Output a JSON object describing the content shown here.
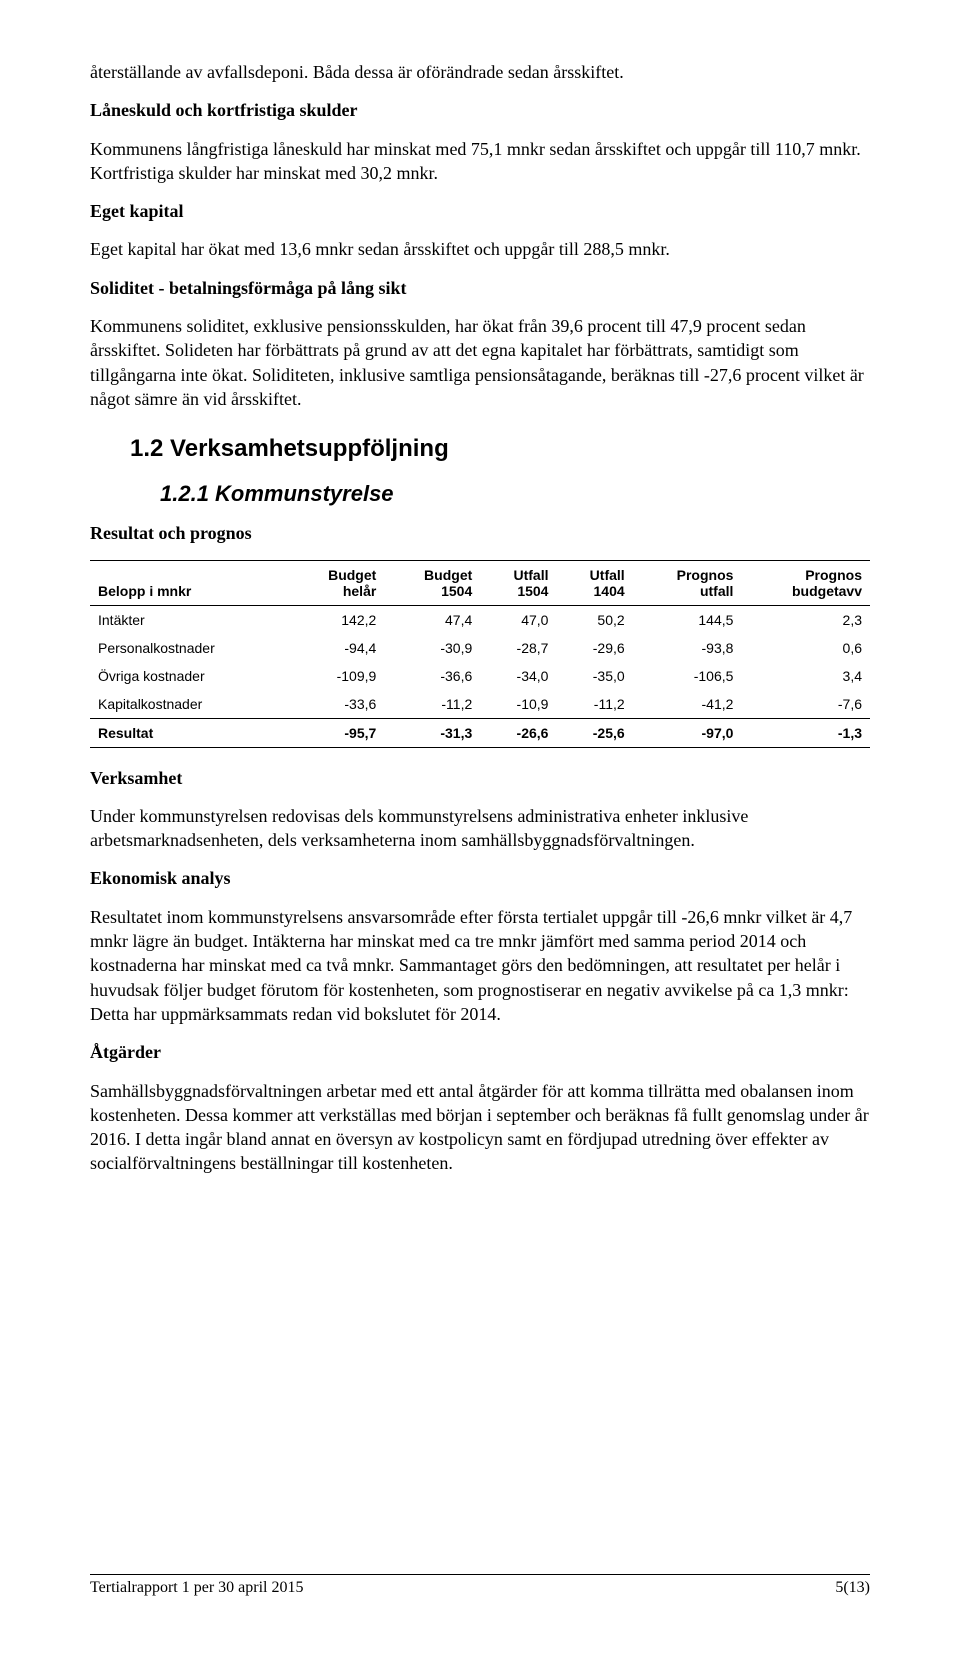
{
  "para1": "återställande av avfallsdeponi. Båda dessa är oförändrade sedan årsskiftet.",
  "h_lane": "Låneskuld och kortfristiga skulder",
  "para2": "Kommunens långfristiga låneskuld har minskat med 75,1 mnkr sedan årsskiftet och uppgår till 110,7 mnkr. Kortfristiga skulder har minskat med 30,2 mnkr.",
  "h_eget": "Eget kapital",
  "para3": "Eget kapital har ökat med 13,6 mnkr sedan årsskiftet och uppgår till 288,5 mnkr.",
  "h_sol": "Soliditet - betalningsförmåga på lång sikt",
  "para4": "Kommunens soliditet, exklusive pensionsskulden, har ökat från 39,6 procent till 47,9 procent sedan årsskiftet. Solideten har förbättrats på grund av att det egna kapitalet har förbättrats, samtidigt som tillgångarna inte ökat. Soliditeten, inklusive samtliga pensionsåtagande, beräknas till -27,6 procent vilket är något sämre än vid årsskiftet.",
  "sec12": "1.2 Verksamhetsuppföljning",
  "sec121": "1.2.1  Kommunstyrelse",
  "h_res": "Resultat och prognos",
  "table": {
    "columns": [
      "Belopp i mnkr",
      "Budget helår",
      "Budget 1504",
      "Utfall 1504",
      "Utfall 1404",
      "Prognos utfall",
      "Prognos budgetavv"
    ],
    "rows": [
      [
        "Intäkter",
        "142,2",
        "47,4",
        "47,0",
        "50,2",
        "144,5",
        "2,3"
      ],
      [
        "Personalkostnader",
        "-94,4",
        "-30,9",
        "-28,7",
        "-29,6",
        "-93,8",
        "0,6"
      ],
      [
        "Övriga kostnader",
        "-109,9",
        "-36,6",
        "-34,0",
        "-35,0",
        "-106,5",
        "3,4"
      ],
      [
        "Kapitalkostnader",
        "-33,6",
        "-11,2",
        "-10,9",
        "-11,2",
        "-41,2",
        "-7,6"
      ],
      [
        "Resultat",
        "-95,7",
        "-31,3",
        "-26,6",
        "-25,6",
        "-97,0",
        "-1,3"
      ]
    ]
  },
  "h_verk": "Verksamhet",
  "para5": "Under kommunstyrelsen redovisas dels kommunstyrelsens administrativa enheter inklusive arbetsmarknadsenheten, dels verksamheterna inom samhällsbyggnadsförvaltningen.",
  "h_eko": "Ekonomisk analys",
  "para6": "Resultatet inom kommunstyrelsens ansvarsområde efter första tertialet uppgår till -26,6 mnkr vilket är 4,7 mnkr lägre än budget. Intäkterna har minskat med ca tre mnkr jämfört med samma period 2014 och kostnaderna har minskat med ca två mnkr. Sammantaget görs den bedömningen, att resultatet per helår i huvudsak följer budget förutom för kostenheten, som prognostiserar en negativ avvikelse på ca 1,3 mnkr: Detta har uppmärksammats redan vid bokslutet för 2014.",
  "h_atg": "Åtgärder",
  "para7": "Samhällsbyggnadsförvaltningen arbetar med ett antal åtgärder för att komma tillrätta med obalansen inom kostenheten. Dessa kommer att verkställas med början i september och beräknas få fullt genomslag under år 2016. I detta ingår bland annat en översyn av kostpolicyn samt en fördjupad utredning över effekter av socialförvaltningens beställningar till kostenheten.",
  "footer_left": "Tertialrapport 1 per 30 april 2015",
  "footer_right": "5(13)"
}
